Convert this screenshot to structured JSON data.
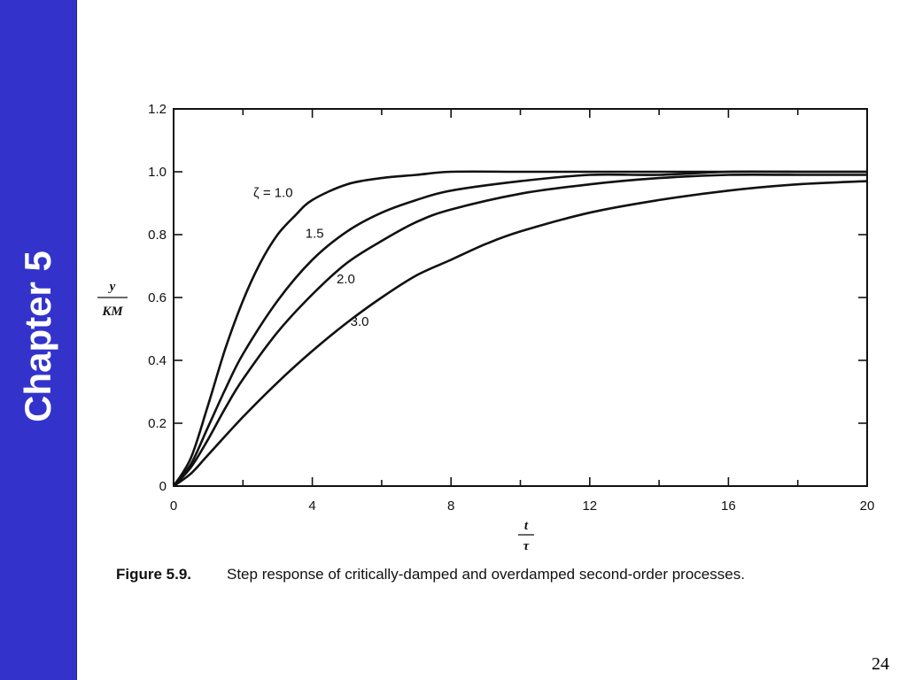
{
  "slide": {
    "chapter_label": "Chapter 5",
    "page_number": "24",
    "sidebar_color": "#3333cc"
  },
  "caption": {
    "figure_number": "Figure 5.9.",
    "text": "Step response of critically-damped and overdamped second-order processes."
  },
  "chart_data": {
    "type": "line",
    "title": "",
    "xlabel": {
      "numerator": "t",
      "denominator": "τ"
    },
    "ylabel": {
      "numerator": "y",
      "denominator": "KM"
    },
    "xlim": [
      0,
      20
    ],
    "ylim": [
      0,
      1.2
    ],
    "x_ticks": [
      0,
      4,
      8,
      12,
      16,
      20
    ],
    "y_ticks": [
      0,
      0.2,
      0.4,
      0.6,
      0.8,
      1.0,
      1.2
    ],
    "x_tick_labels": [
      "0",
      "4",
      "8",
      "12",
      "16",
      "20"
    ],
    "y_tick_labels": [
      "0",
      "0.2",
      "0.4",
      "0.6",
      "0.8",
      "1.0",
      "1.2"
    ],
    "grid": false,
    "line_color": "#111111",
    "series": [
      {
        "name": "ζ = 1.0",
        "label": "ζ = 1.0",
        "x": [
          0,
          0.5,
          1,
          1.5,
          2,
          2.5,
          3,
          3.5,
          4,
          5,
          6,
          7,
          8,
          10,
          12,
          14,
          16,
          18,
          20
        ],
        "values": [
          0,
          0.09,
          0.26,
          0.44,
          0.59,
          0.71,
          0.8,
          0.86,
          0.91,
          0.96,
          0.98,
          0.99,
          1.0,
          1.0,
          1.0,
          1.0,
          1.0,
          1.0,
          1.0
        ]
      },
      {
        "name": "1.5",
        "label": "1.5",
        "x": [
          0,
          0.5,
          1,
          1.5,
          2,
          3,
          4,
          5,
          6,
          7,
          8,
          10,
          12,
          14,
          16,
          18,
          20
        ],
        "values": [
          0,
          0.07,
          0.19,
          0.31,
          0.42,
          0.59,
          0.72,
          0.81,
          0.87,
          0.91,
          0.94,
          0.97,
          0.99,
          0.99,
          1.0,
          1.0,
          1.0
        ]
      },
      {
        "name": "2.0",
        "label": "2.0",
        "x": [
          0,
          0.5,
          1,
          1.5,
          2,
          3,
          4,
          5,
          6,
          7,
          8,
          10,
          12,
          14,
          16,
          18,
          20
        ],
        "values": [
          0,
          0.06,
          0.15,
          0.25,
          0.34,
          0.49,
          0.61,
          0.71,
          0.78,
          0.84,
          0.88,
          0.93,
          0.96,
          0.98,
          0.99,
          0.99,
          0.99
        ]
      },
      {
        "name": "3.0",
        "label": "3.0",
        "x": [
          0,
          0.5,
          1,
          2,
          3,
          4,
          5,
          6,
          7,
          8,
          9,
          10,
          12,
          14,
          16,
          18,
          20
        ],
        "values": [
          0,
          0.04,
          0.1,
          0.22,
          0.33,
          0.43,
          0.52,
          0.6,
          0.67,
          0.72,
          0.77,
          0.81,
          0.87,
          0.91,
          0.94,
          0.96,
          0.97
        ]
      }
    ]
  }
}
